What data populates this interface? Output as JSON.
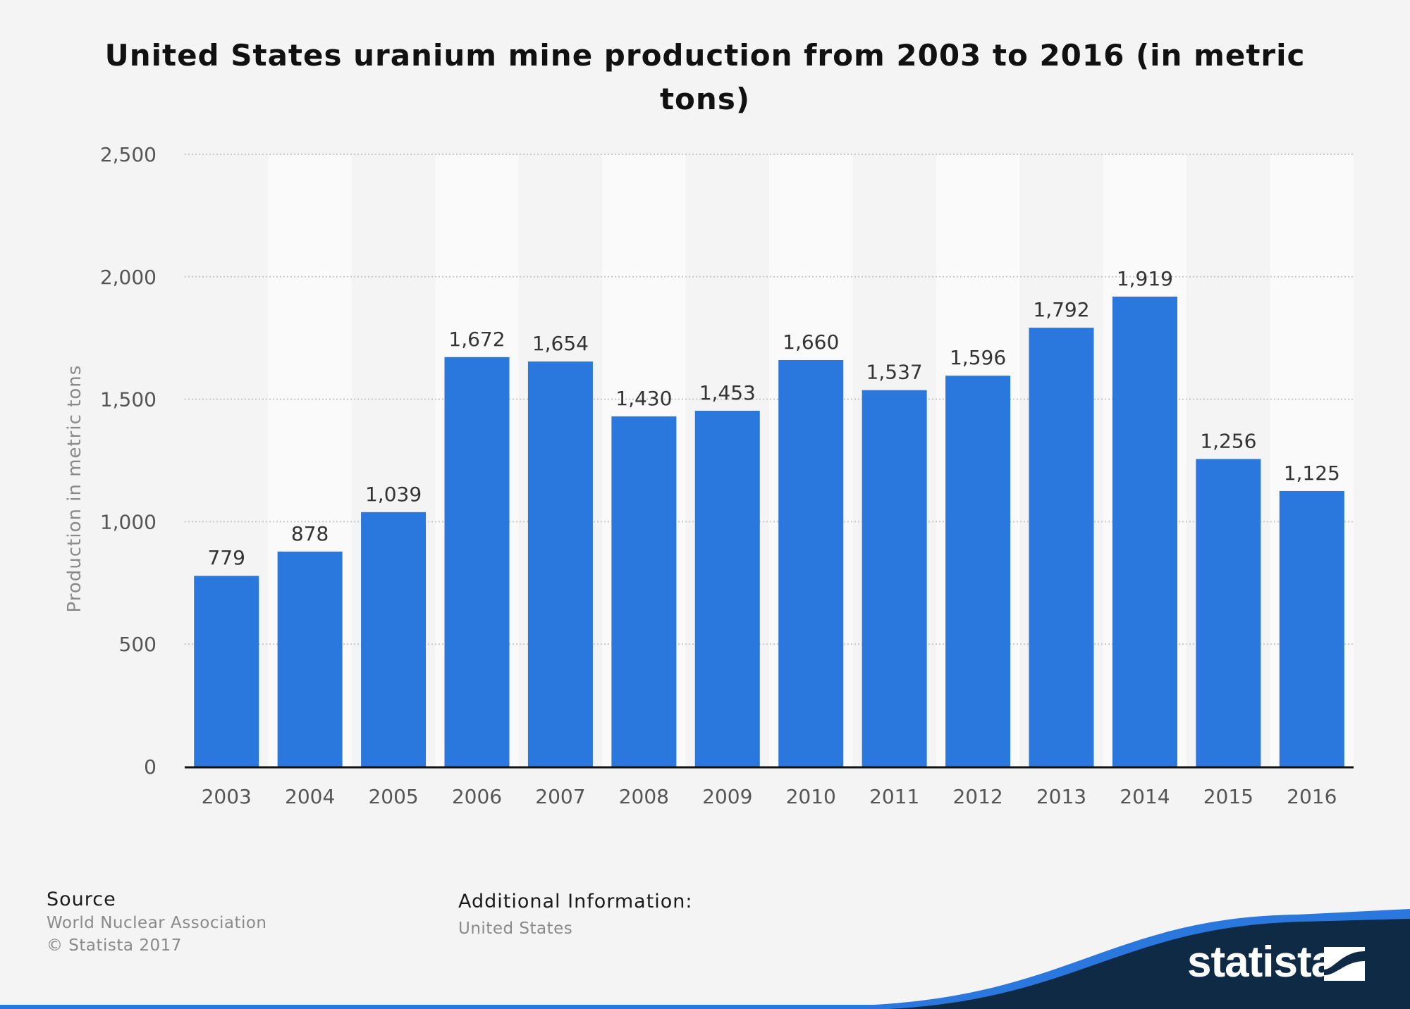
{
  "colors": {
    "bar": "#2a77dd",
    "background": "#f4f4f4",
    "band": "#fafafa",
    "grid": "#c7c7c7",
    "axis": "#111111",
    "brand_dark": "#0f2a44",
    "brand_blue": "#2a77dd"
  },
  "chart_data": {
    "type": "bar",
    "title": "United States uranium mine production from 2003 to 2016 (in metric tons)",
    "xlabel": "",
    "ylabel": "Production in metric tons",
    "ylim": [
      0,
      2500
    ],
    "yticks": [
      0,
      500,
      1000,
      1500,
      2000,
      2500
    ],
    "ytick_labels": [
      "0",
      "500",
      "1,000",
      "1,500",
      "2,000",
      "2,500"
    ],
    "grid": true,
    "categories": [
      "2003",
      "2004",
      "2005",
      "2006",
      "2007",
      "2008",
      "2009",
      "2010",
      "2011",
      "2012",
      "2013",
      "2014",
      "2015",
      "2016"
    ],
    "values": [
      779,
      878,
      1039,
      1672,
      1654,
      1430,
      1453,
      1660,
      1537,
      1596,
      1792,
      1919,
      1256,
      1125
    ],
    "value_labels": [
      "779",
      "878",
      "1,039",
      "1,672",
      "1,654",
      "1,430",
      "1,453",
      "1,660",
      "1,537",
      "1,596",
      "1,792",
      "1,919",
      "1,256",
      "1,125"
    ]
  },
  "footer": {
    "source_heading": "Source",
    "source_text": "World Nuclear Association",
    "copyright": "© Statista 2017",
    "info_heading": "Additional Information:",
    "info_text": "United States",
    "brand": "statista",
    "brand_icon": "statista-logo-icon"
  }
}
